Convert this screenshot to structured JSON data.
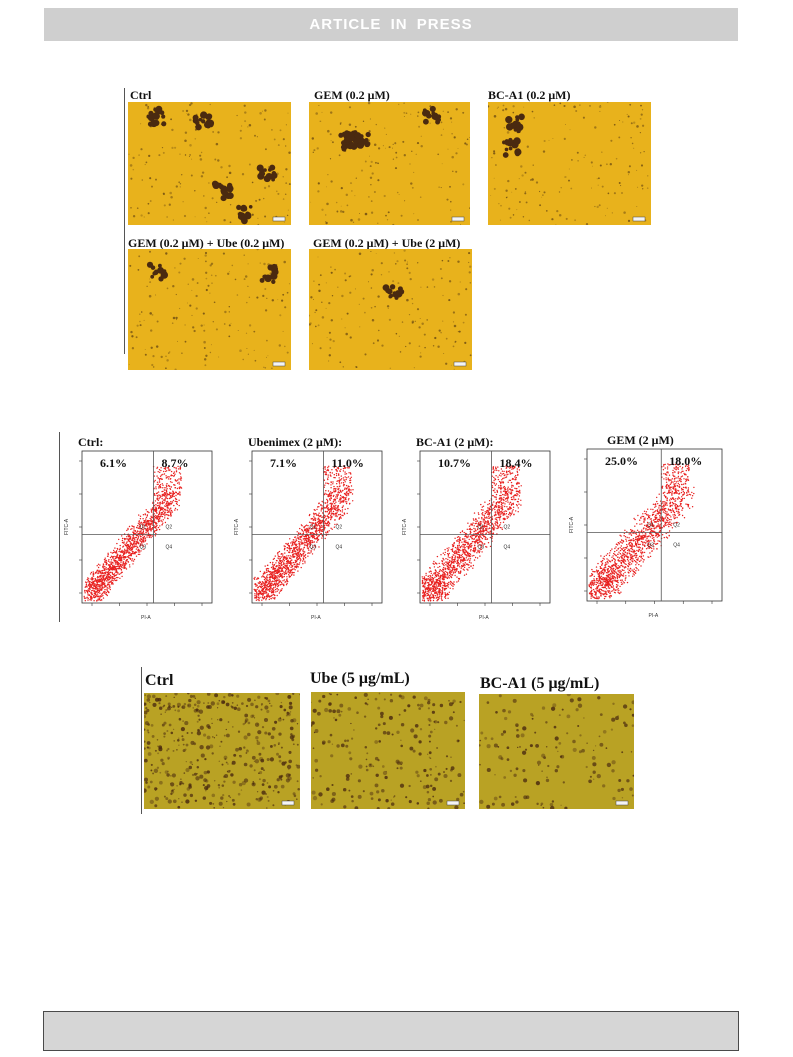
{
  "banner": {
    "text": "ARTICLE IN PRESS"
  },
  "colony_panel": {
    "images": [
      {
        "label": "Ctrl"
      },
      {
        "label": "GEM (0.2 μM)"
      },
      {
        "label": "BC-A1 (0.2 μM)"
      },
      {
        "label": "GEM (0.2 μM) + Ube (0.2 μM)"
      },
      {
        "label": "GEM (0.2 μM) + Ube (2 μM)"
      }
    ]
  },
  "flow_panel": {
    "axis": {
      "x_label": "PI-A",
      "y_label": "FITC-A",
      "quadrants": [
        "Q1",
        "Q2",
        "Q3",
        "Q4"
      ]
    },
    "plots": [
      {
        "title": "Ctrl:",
        "early_apoptosis": "6.1%",
        "late_apoptosis": "8.7%"
      },
      {
        "title": "Ubenimex (2 μM):",
        "early_apoptosis": "7.1%",
        "late_apoptosis": "11.0%"
      },
      {
        "title": "BC-A1 (2 μM):",
        "early_apoptosis": "10.7%",
        "late_apoptosis": "18.4%"
      },
      {
        "title": "GEM (2 μM)",
        "early_apoptosis": "25.0%",
        "late_apoptosis": "18.0%"
      }
    ]
  },
  "migration_panel": {
    "images": [
      {
        "label": "Ctrl"
      },
      {
        "label": "Ube (5 μg/mL)"
      },
      {
        "label": "BC-A1 (5 μg/mL)"
      }
    ]
  },
  "colors": {
    "colony_background": "#e8b21c",
    "migration_background": "#b9a224",
    "dot_red": "#e8201f",
    "cell_dark": "#4a2a10"
  }
}
